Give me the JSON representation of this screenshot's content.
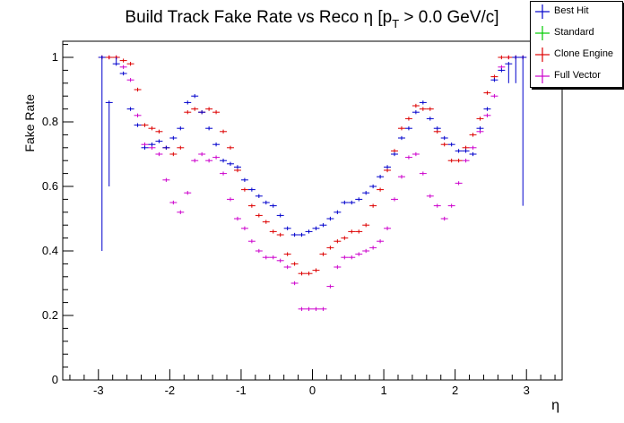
{
  "chart_data": {
    "type": "scatter",
    "title": "Build Track Fake Rate vs Reco η [p_T > 0.0 GeV/c]",
    "title_parts": {
      "main": "Build Track Fake Rate vs Reco η [p",
      "sub": "T",
      "rest": " > 0.0 GeV/c]"
    },
    "xlabel": "η",
    "ylabel": "Fake Rate",
    "xlim": [
      -3.5,
      3.5
    ],
    "ylim": [
      0,
      1.05
    ],
    "x_ticks": [
      "-3",
      "-2",
      "-1",
      "0",
      "1",
      "2",
      "3"
    ],
    "y_ticks": [
      "0",
      "0.2",
      "0.4",
      "0.6",
      "0.8",
      "1"
    ],
    "grid": false,
    "legend_position": "top-right",
    "x": [
      -2.95,
      -2.85,
      -2.75,
      -2.65,
      -2.55,
      -2.45,
      -2.35,
      -2.25,
      -2.15,
      -2.05,
      -1.95,
      -1.85,
      -1.75,
      -1.65,
      -1.55,
      -1.45,
      -1.35,
      -1.25,
      -1.15,
      -1.05,
      -0.95,
      -0.85,
      -0.75,
      -0.65,
      -0.55,
      -0.45,
      -0.35,
      -0.25,
      -0.15,
      -0.05,
      0.05,
      0.15,
      0.25,
      0.35,
      0.45,
      0.55,
      0.65,
      0.75,
      0.85,
      0.95,
      1.05,
      1.15,
      1.25,
      1.35,
      1.45,
      1.55,
      1.65,
      1.75,
      1.85,
      1.95,
      2.05,
      2.15,
      2.25,
      2.35,
      2.45,
      2.55,
      2.65,
      2.75,
      2.85,
      2.95
    ],
    "series": [
      {
        "name": "Best Hit",
        "color": "#0000cc",
        "values": [
          1.0,
          0.86,
          0.98,
          0.95,
          0.84,
          0.79,
          0.72,
          0.73,
          0.74,
          0.72,
          0.75,
          0.78,
          0.86,
          0.88,
          0.83,
          0.78,
          0.73,
          0.68,
          0.67,
          0.66,
          0.62,
          0.59,
          0.57,
          0.55,
          0.54,
          0.51,
          0.47,
          0.45,
          0.45,
          0.46,
          0.47,
          0.48,
          0.5,
          0.52,
          0.55,
          0.55,
          0.56,
          0.58,
          0.6,
          0.63,
          0.66,
          0.7,
          0.75,
          0.78,
          0.83,
          0.86,
          0.81,
          0.78,
          0.75,
          0.73,
          0.71,
          0.71,
          0.7,
          0.78,
          0.84,
          0.93,
          0.96,
          0.98,
          1.0,
          1.0
        ],
        "err_low": [
          0.6,
          0.26,
          0.0,
          0.0,
          0.0,
          0.0,
          0.0,
          0.0,
          0.0,
          0.0,
          0.0,
          0.0,
          0.0,
          0.0,
          0.0,
          0.0,
          0.0,
          0.0,
          0.0,
          0.0,
          0.0,
          0.0,
          0.0,
          0.0,
          0.0,
          0.0,
          0.0,
          0.0,
          0.0,
          0.0,
          0.0,
          0.0,
          0.0,
          0.0,
          0.0,
          0.0,
          0.0,
          0.0,
          0.0,
          0.0,
          0.0,
          0.0,
          0.0,
          0.0,
          0.0,
          0.0,
          0.0,
          0.0,
          0.0,
          0.0,
          0.0,
          0.0,
          0.0,
          0.0,
          0.0,
          0.0,
          0.0,
          0.06,
          0.08,
          0.46
        ],
        "err_high": [
          0.0,
          0.0,
          0.02,
          0.0,
          0.0,
          0.0,
          0.0,
          0.0,
          0.0,
          0.0,
          0.0,
          0.0,
          0.0,
          0.0,
          0.0,
          0.0,
          0.0,
          0.0,
          0.0,
          0.0,
          0.0,
          0.0,
          0.0,
          0.0,
          0.0,
          0.0,
          0.0,
          0.0,
          0.0,
          0.0,
          0.0,
          0.0,
          0.0,
          0.0,
          0.0,
          0.0,
          0.0,
          0.0,
          0.0,
          0.0,
          0.0,
          0.0,
          0.0,
          0.0,
          0.0,
          0.0,
          0.0,
          0.0,
          0.0,
          0.0,
          0.0,
          0.0,
          0.0,
          0.0,
          0.0,
          0.0,
          0.0,
          0.0,
          0.0,
          0.0
        ]
      },
      {
        "name": "Standard",
        "color": "#00cc00",
        "values": []
      },
      {
        "name": "Clone Engine",
        "color": "#dd0000",
        "values": [
          1.0,
          1.0,
          1.0,
          0.99,
          0.98,
          0.9,
          0.79,
          0.78,
          0.77,
          0.72,
          0.7,
          0.72,
          0.83,
          0.84,
          0.83,
          0.84,
          0.83,
          0.77,
          0.72,
          0.65,
          0.59,
          0.54,
          0.51,
          0.49,
          0.46,
          0.45,
          0.39,
          0.36,
          0.33,
          0.33,
          0.34,
          0.39,
          0.41,
          0.43,
          0.44,
          0.46,
          0.46,
          0.48,
          0.54,
          0.59,
          0.65,
          0.71,
          0.78,
          0.81,
          0.85,
          0.84,
          0.84,
          0.77,
          0.73,
          0.68,
          0.68,
          0.72,
          0.76,
          0.81,
          0.89,
          0.94,
          1.0,
          1.0,
          1.0,
          1.0
        ]
      },
      {
        "name": "Full Vector",
        "color": "#cc00cc",
        "values": [
          1.0,
          1.0,
          1.0,
          0.97,
          0.93,
          0.82,
          0.73,
          0.72,
          0.7,
          0.62,
          0.55,
          0.52,
          0.58,
          0.68,
          0.7,
          0.68,
          0.69,
          0.64,
          0.56,
          0.5,
          0.47,
          0.43,
          0.4,
          0.38,
          0.38,
          0.37,
          0.35,
          0.3,
          0.22,
          0.22,
          0.22,
          0.22,
          0.29,
          0.35,
          0.38,
          0.38,
          0.39,
          0.4,
          0.41,
          0.43,
          0.47,
          0.56,
          0.63,
          0.69,
          0.7,
          0.64,
          0.57,
          0.54,
          0.5,
          0.54,
          0.61,
          0.68,
          0.72,
          0.77,
          0.82,
          0.88,
          0.97,
          1.0,
          1.0,
          1.0
        ]
      }
    ]
  }
}
